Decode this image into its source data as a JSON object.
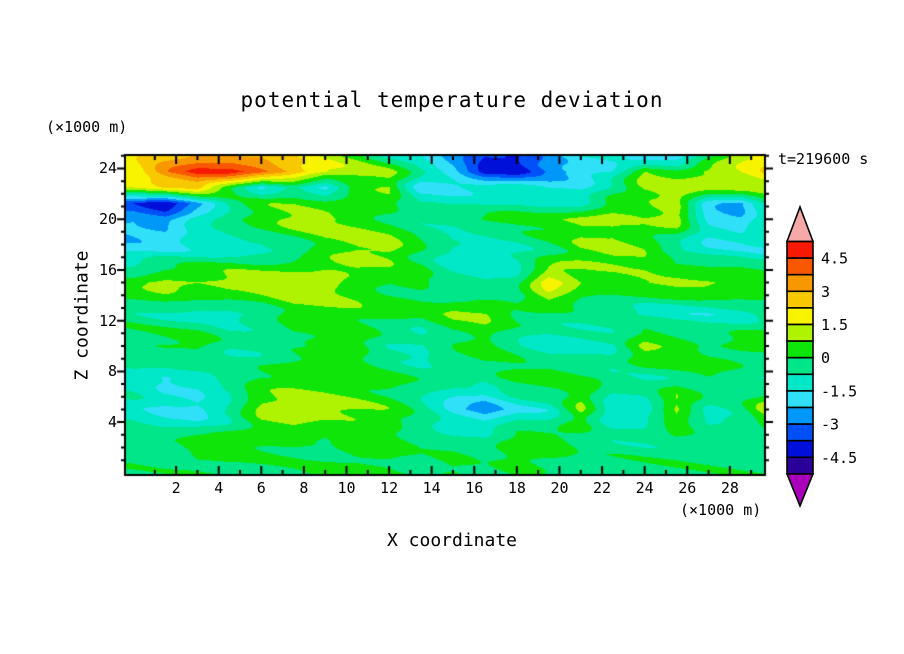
{
  "title": "potential temperature deviation",
  "annotations": {
    "time_label": "t=219600 s",
    "y_units_label": "(×1000 m)",
    "x_units_label": "(×1000 m)"
  },
  "axes": {
    "x": {
      "label": "X coordinate",
      "range": [
        -0.4,
        29.65
      ],
      "major_ticks": [
        2,
        4,
        6,
        8,
        10,
        12,
        14,
        16,
        18,
        20,
        22,
        24,
        26,
        28
      ],
      "major_tick_labels": [
        "2",
        "4",
        "6",
        "8",
        "10",
        "12",
        "14",
        "16",
        "18",
        "20",
        "22",
        "24",
        "26",
        "28"
      ],
      "minor_ticks": [
        1,
        3,
        5,
        7,
        9,
        11,
        13,
        15,
        17,
        19,
        21,
        23,
        25,
        27,
        29
      ]
    },
    "y": {
      "label": "Z coordinate",
      "range": [
        -0.17,
        25.06
      ],
      "major_ticks": [
        4,
        8,
        12,
        16,
        20,
        24
      ],
      "major_tick_labels": [
        "4",
        "8",
        "12",
        "16",
        "20",
        "24"
      ],
      "minor_ticks": [
        1,
        2,
        3,
        5,
        6,
        7,
        9,
        10,
        11,
        13,
        14,
        15,
        17,
        18,
        19,
        21,
        22,
        23,
        25
      ]
    }
  },
  "colorbar": {
    "tick_labels": [
      "4.5",
      "3",
      "1.5",
      "0",
      "-1.5",
      "-3",
      "-4.5"
    ],
    "tick_values": [
      4.5,
      3,
      1.5,
      0,
      -1.5,
      -3,
      -4.5
    ],
    "levels": [
      -5.25,
      -4.5,
      -3.75,
      -3,
      -2.25,
      -1.5,
      -0.75,
      0,
      0.75,
      1.5,
      2.25,
      3,
      3.75,
      4.5,
      5.25
    ],
    "band_colors_low_to_high": [
      "#2a0099",
      "#0010d8",
      "#0050f8",
      "#0098f8",
      "#30e0f8",
      "#00e8c8",
      "#00e689",
      "#0fe508",
      "#aff202",
      "#f8f400",
      "#f8c800",
      "#f89800",
      "#f85800",
      "#f81a00"
    ],
    "under_color": "#aa00bb",
    "over_color": "#f5a9a9"
  },
  "chart_data": {
    "type": "heatmap",
    "title": "potential temperature deviation",
    "xlabel": "X coordinate",
    "ylabel": "Z coordinate",
    "x_units": "(×1000 m)",
    "y_units": "(×1000 m)",
    "time_annotation": "t=219600 s",
    "xlim": [
      -0.4,
      29.65
    ],
    "ylim": [
      -0.17,
      25.06
    ],
    "contour_interval": 0.75,
    "legend_position": "right-colorbar",
    "grid": false,
    "x": [
      0,
      1.5,
      3,
      4.5,
      6,
      7.5,
      9,
      10.5,
      12,
      13.5,
      15,
      16.5,
      18,
      19.5,
      21,
      22.5,
      24,
      25.5,
      27,
      28.5,
      30
    ],
    "z": [
      25,
      23.75,
      22.5,
      21.25,
      20,
      17.5,
      15,
      12.5,
      10,
      7.5,
      5,
      2.5,
      0
    ],
    "values": [
      [
        2.0,
        2.5,
        3.0,
        3.0,
        2.8,
        2.0,
        1.0,
        0.3,
        -1.0,
        -1.2,
        -2.5,
        -3.8,
        -3.8,
        -2.5,
        -1.2,
        -1.0,
        -2.2,
        -2.5,
        -0.5,
        1.2,
        2.2
      ],
      [
        2.0,
        3.8,
        4.8,
        5.0,
        4.2,
        3.0,
        1.8,
        1.2,
        0.8,
        -0.8,
        -2.0,
        -4.2,
        -4.4,
        -3.0,
        -2.2,
        -1.5,
        1.0,
        0.5,
        1.2,
        1.5,
        2.5
      ],
      [
        1.2,
        2.0,
        2.5,
        0.5,
        -1.5,
        -0.5,
        -1.8,
        0.5,
        1.0,
        -1.8,
        -1.5,
        -1.2,
        -1.0,
        -1.8,
        -1.8,
        -0.5,
        0.8,
        1.0,
        1.0,
        1.3,
        1.5
      ],
      [
        -3.5,
        -4.3,
        -2.5,
        -0.8,
        0.3,
        0.5,
        0.3,
        0.3,
        0.2,
        -0.8,
        -1.0,
        -0.8,
        -0.5,
        -0.8,
        -1.0,
        0.3,
        0.5,
        1.2,
        -2.0,
        -2.5,
        -0.3
      ],
      [
        -2.5,
        -2.8,
        -1.0,
        -0.3,
        0.5,
        1.0,
        1.0,
        0.5,
        0.0,
        -0.5,
        -0.5,
        0.0,
        0.3,
        0.5,
        1.0,
        1.0,
        0.5,
        1.0,
        -1.8,
        -2.0,
        -0.3
      ],
      [
        -1.8,
        -1.5,
        -1.2,
        -1.0,
        -1.0,
        -0.5,
        0.5,
        1.2,
        1.2,
        0.0,
        -1.0,
        -1.2,
        -1.0,
        -0.5,
        0.5,
        0.8,
        0.5,
        -0.8,
        -1.2,
        -1.2,
        -1.5
      ],
      [
        0.5,
        1.2,
        1.0,
        1.3,
        1.3,
        1.2,
        1.0,
        0.5,
        0.0,
        0.2,
        -0.8,
        -1.0,
        -0.5,
        2.2,
        0.8,
        0.5,
        0.8,
        1.0,
        1.0,
        0.8,
        0.5
      ],
      [
        -0.5,
        -0.8,
        -1.0,
        -1.0,
        -0.5,
        0.5,
        0.5,
        0.5,
        0.3,
        0.0,
        0.8,
        0.8,
        0.0,
        -0.3,
        -0.5,
        -0.5,
        -1.0,
        -1.2,
        -1.2,
        -1.0,
        -0.5
      ],
      [
        0.0,
        0.3,
        0.5,
        -0.5,
        -0.8,
        -0.3,
        0.0,
        0.3,
        -0.8,
        -1.0,
        -0.3,
        0.3,
        -0.5,
        -1.2,
        -1.0,
        -0.8,
        1.0,
        0.5,
        0.0,
        0.3,
        0.5
      ],
      [
        -1.0,
        -1.5,
        -1.2,
        -0.5,
        0.3,
        0.5,
        0.5,
        0.3,
        0.0,
        -0.3,
        -0.5,
        -0.3,
        0.3,
        0.5,
        0.0,
        -0.3,
        -0.5,
        -0.3,
        0.0,
        -0.5,
        -1.0
      ],
      [
        -1.0,
        -1.6,
        -2.0,
        -1.0,
        0.8,
        1.2,
        1.0,
        0.8,
        0.5,
        -0.5,
        -1.8,
        -2.6,
        -1.5,
        -1.2,
        1.0,
        -1.5,
        -1.2,
        1.0,
        -1.0,
        -0.5,
        1.5
      ],
      [
        -0.3,
        -0.3,
        0.3,
        0.4,
        0.4,
        0.3,
        -0.3,
        0.3,
        0.3,
        -0.3,
        -0.3,
        -0.3,
        0.4,
        0.3,
        -0.3,
        -0.4,
        -0.4,
        -0.3,
        -0.3,
        -0.4,
        -0.4
      ],
      [
        -0.3,
        -0.3,
        -0.2,
        -0.2,
        -0.3,
        -0.2,
        0.3,
        0.3,
        0.2,
        -0.2,
        0.4,
        -0.2,
        0.3,
        -0.2,
        -0.3,
        -0.3,
        -0.3,
        -0.3,
        -0.3,
        -0.3,
        -0.3
      ]
    ]
  }
}
